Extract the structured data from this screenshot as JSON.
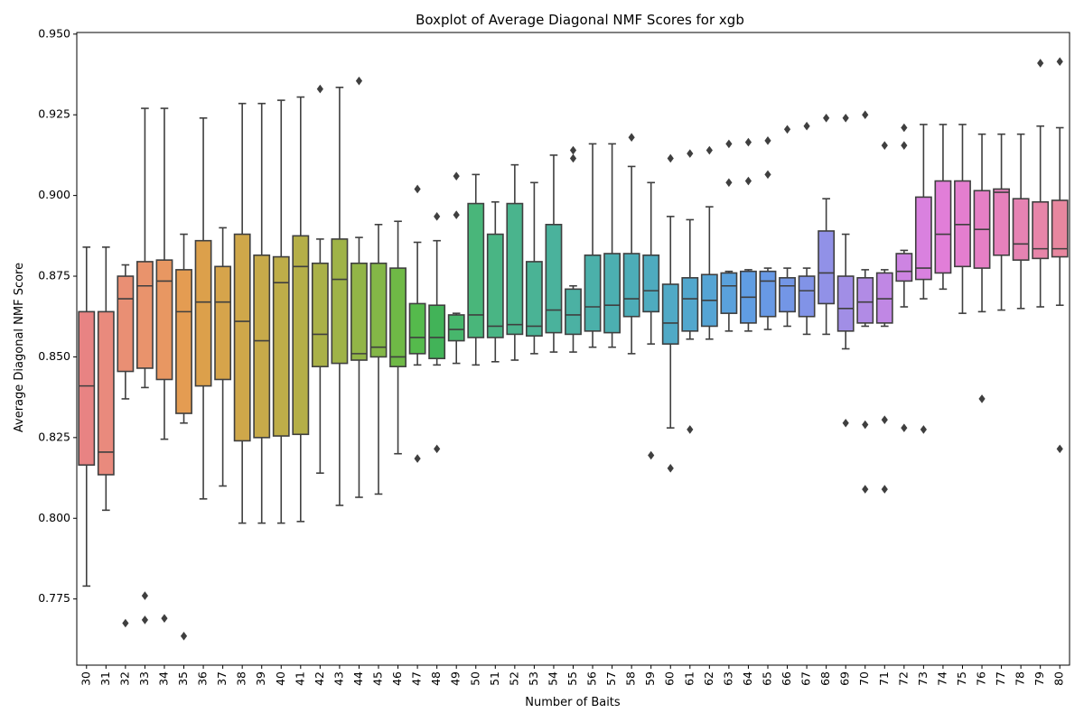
{
  "chart_data": {
    "type": "box",
    "title": "Boxplot of Average Diagonal NMF Scores for xgb",
    "xlabel": "Number of Baits",
    "ylabel": "Average Diagonal NMF Score",
    "ylim": [
      0.7545,
      0.9505
    ],
    "yticks": [
      0.775,
      0.8,
      0.825,
      0.85,
      0.875,
      0.9,
      0.925,
      0.95
    ],
    "ytick_labels": [
      "0.775",
      "0.800",
      "0.825",
      "0.850",
      "0.875",
      "0.900",
      "0.925",
      "0.950"
    ],
    "grid": false,
    "categories": [
      "30",
      "31",
      "32",
      "33",
      "34",
      "35",
      "36",
      "37",
      "38",
      "39",
      "40",
      "41",
      "42",
      "43",
      "44",
      "45",
      "46",
      "47",
      "48",
      "49",
      "50",
      "51",
      "52",
      "53",
      "54",
      "55",
      "56",
      "57",
      "58",
      "59",
      "60",
      "61",
      "62",
      "63",
      "64",
      "65",
      "66",
      "67",
      "68",
      "69",
      "70",
      "71",
      "72",
      "73",
      "74",
      "75",
      "76",
      "77",
      "78",
      "79",
      "80"
    ],
    "boxes": [
      {
        "whislo": 0.779,
        "q1": 0.8165,
        "med": 0.841,
        "q3": 0.864,
        "whishi": 0.884,
        "fliers": [],
        "color": "#e88383"
      },
      {
        "whislo": 0.8025,
        "q1": 0.8135,
        "med": 0.8205,
        "q3": 0.864,
        "whishi": 0.884,
        "fliers": [],
        "color": "#e98a7d"
      },
      {
        "whislo": 0.837,
        "q1": 0.8455,
        "med": 0.868,
        "q3": 0.875,
        "whishi": 0.8785,
        "fliers": [
          0.7675
        ],
        "color": "#e98f74"
      },
      {
        "whislo": 0.8405,
        "q1": 0.8465,
        "med": 0.872,
        "q3": 0.8795,
        "whishi": 0.927,
        "fliers": [
          0.7685,
          0.776
        ],
        "color": "#e9936c"
      },
      {
        "whislo": 0.8245,
        "q1": 0.843,
        "med": 0.8735,
        "q3": 0.88,
        "whishi": 0.927,
        "fliers": [
          0.769
        ],
        "color": "#e89762"
      },
      {
        "whislo": 0.8295,
        "q1": 0.8325,
        "med": 0.864,
        "q3": 0.877,
        "whishi": 0.888,
        "fliers": [
          0.7635
        ],
        "color": "#e49c52"
      },
      {
        "whislo": 0.806,
        "q1": 0.841,
        "med": 0.867,
        "q3": 0.886,
        "whishi": 0.924,
        "fliers": [],
        "color": "#dca04b"
      },
      {
        "whislo": 0.81,
        "q1": 0.843,
        "med": 0.867,
        "q3": 0.878,
        "whishi": 0.89,
        "fliers": [],
        "color": "#d6a44b"
      },
      {
        "whislo": 0.7985,
        "q1": 0.824,
        "med": 0.861,
        "q3": 0.888,
        "whishi": 0.9285,
        "fliers": [],
        "color": "#cfa74a"
      },
      {
        "whislo": 0.7985,
        "q1": 0.825,
        "med": 0.855,
        "q3": 0.8815,
        "whishi": 0.9285,
        "fliers": [],
        "color": "#c7aa4a"
      },
      {
        "whislo": 0.7985,
        "q1": 0.8255,
        "med": 0.873,
        "q3": 0.881,
        "whishi": 0.9295,
        "fliers": [],
        "color": "#bead49"
      },
      {
        "whislo": 0.799,
        "q1": 0.826,
        "med": 0.878,
        "q3": 0.8875,
        "whishi": 0.9305,
        "fliers": [],
        "color": "#b5af48"
      },
      {
        "whislo": 0.814,
        "q1": 0.847,
        "med": 0.857,
        "q3": 0.879,
        "whishi": 0.8865,
        "fliers": [
          0.933
        ],
        "color": "#aab148"
      },
      {
        "whislo": 0.804,
        "q1": 0.848,
        "med": 0.874,
        "q3": 0.8865,
        "whishi": 0.9335,
        "fliers": [],
        "color": "#9fb348"
      },
      {
        "whislo": 0.8065,
        "q1": 0.849,
        "med": 0.851,
        "q3": 0.879,
        "whishi": 0.887,
        "fliers": [
          0.9355
        ],
        "color": "#92b547"
      },
      {
        "whislo": 0.8075,
        "q1": 0.85,
        "med": 0.853,
        "q3": 0.879,
        "whishi": 0.891,
        "fliers": [],
        "color": "#84b747"
      },
      {
        "whislo": 0.82,
        "q1": 0.847,
        "med": 0.85,
        "q3": 0.8775,
        "whishi": 0.892,
        "fliers": [],
        "color": "#6fb946"
      },
      {
        "whislo": 0.8475,
        "q1": 0.851,
        "med": 0.856,
        "q3": 0.8665,
        "whishi": 0.8855,
        "fliers": [
          0.8185,
          0.902
        ],
        "color": "#55ba4c"
      },
      {
        "whislo": 0.8475,
        "q1": 0.8495,
        "med": 0.856,
        "q3": 0.866,
        "whishi": 0.886,
        "fliers": [
          0.8215,
          0.8935
        ],
        "color": "#42b358"
      },
      {
        "whislo": 0.848,
        "q1": 0.855,
        "med": 0.8585,
        "q3": 0.863,
        "whishi": 0.8635,
        "fliers": [
          0.894,
          0.906
        ],
        "color": "#47b76c"
      },
      {
        "whislo": 0.8475,
        "q1": 0.856,
        "med": 0.863,
        "q3": 0.8975,
        "whishi": 0.9065,
        "fliers": [],
        "color": "#49b67a"
      },
      {
        "whislo": 0.8485,
        "q1": 0.856,
        "med": 0.8595,
        "q3": 0.888,
        "whishi": 0.898,
        "fliers": [],
        "color": "#49b584"
      },
      {
        "whislo": 0.849,
        "q1": 0.857,
        "med": 0.86,
        "q3": 0.8975,
        "whishi": 0.9095,
        "fliers": [],
        "color": "#4ab48d"
      },
      {
        "whislo": 0.851,
        "q1": 0.8565,
        "med": 0.8595,
        "q3": 0.8795,
        "whishi": 0.904,
        "fliers": [],
        "color": "#4ab395"
      },
      {
        "whislo": 0.8515,
        "q1": 0.8575,
        "med": 0.8645,
        "q3": 0.891,
        "whishi": 0.9125,
        "fliers": [],
        "color": "#4ab29c"
      },
      {
        "whislo": 0.8515,
        "q1": 0.857,
        "med": 0.863,
        "q3": 0.871,
        "whishi": 0.872,
        "fliers": [
          0.9115,
          0.914
        ],
        "color": "#4bb1a3"
      },
      {
        "whislo": 0.853,
        "q1": 0.858,
        "med": 0.8655,
        "q3": 0.8815,
        "whishi": 0.916,
        "fliers": [],
        "color": "#4bb0aa"
      },
      {
        "whislo": 0.853,
        "q1": 0.8575,
        "med": 0.866,
        "q3": 0.882,
        "whishi": 0.916,
        "fliers": [],
        "color": "#4cafb1"
      },
      {
        "whislo": 0.851,
        "q1": 0.8625,
        "med": 0.868,
        "q3": 0.882,
        "whishi": 0.909,
        "fliers": [
          0.918
        ],
        "color": "#4dadb8"
      },
      {
        "whislo": 0.854,
        "q1": 0.864,
        "med": 0.8705,
        "q3": 0.8815,
        "whishi": 0.904,
        "fliers": [
          0.8195
        ],
        "color": "#4eabbf"
      },
      {
        "whislo": 0.828,
        "q1": 0.854,
        "med": 0.8605,
        "q3": 0.8725,
        "whishi": 0.8935,
        "fliers": [
          0.8155,
          0.9115
        ],
        "color": "#50a9c6"
      },
      {
        "whislo": 0.8555,
        "q1": 0.858,
        "med": 0.868,
        "q3": 0.8745,
        "whishi": 0.8925,
        "fliers": [
          0.8275,
          0.913
        ],
        "color": "#52a7cd"
      },
      {
        "whislo": 0.8555,
        "q1": 0.8595,
        "med": 0.8675,
        "q3": 0.8755,
        "whishi": 0.8965,
        "fliers": [
          0.914
        ],
        "color": "#55a4d4"
      },
      {
        "whislo": 0.858,
        "q1": 0.8635,
        "med": 0.872,
        "q3": 0.876,
        "whishi": 0.8765,
        "fliers": [
          0.904,
          0.916
        ],
        "color": "#5aa1dc"
      },
      {
        "whislo": 0.858,
        "q1": 0.8605,
        "med": 0.8685,
        "q3": 0.8765,
        "whishi": 0.877,
        "fliers": [
          0.9045,
          0.9165
        ],
        "color": "#609de2"
      },
      {
        "whislo": 0.8585,
        "q1": 0.8625,
        "med": 0.8735,
        "q3": 0.8765,
        "whishi": 0.8775,
        "fliers": [
          0.9065,
          0.917
        ],
        "color": "#6899e5"
      },
      {
        "whislo": 0.8595,
        "q1": 0.864,
        "med": 0.872,
        "q3": 0.8745,
        "whishi": 0.8775,
        "fliers": [
          0.9205
        ],
        "color": "#7396e6"
      },
      {
        "whislo": 0.857,
        "q1": 0.8625,
        "med": 0.8705,
        "q3": 0.875,
        "whishi": 0.8775,
        "fliers": [
          0.9215
        ],
        "color": "#8193e7"
      },
      {
        "whislo": 0.857,
        "q1": 0.8665,
        "med": 0.876,
        "q3": 0.889,
        "whishi": 0.899,
        "fliers": [
          0.924
        ],
        "color": "#9191e7"
      },
      {
        "whislo": 0.8525,
        "q1": 0.858,
        "med": 0.865,
        "q3": 0.875,
        "whishi": 0.888,
        "fliers": [
          0.8295,
          0.924
        ],
        "color": "#a18ee6"
      },
      {
        "whislo": 0.8595,
        "q1": 0.8605,
        "med": 0.867,
        "q3": 0.8745,
        "whishi": 0.877,
        "fliers": [
          0.809,
          0.829,
          0.925
        ],
        "color": "#b18be5"
      },
      {
        "whislo": 0.8595,
        "q1": 0.8605,
        "med": 0.868,
        "q3": 0.876,
        "whishi": 0.877,
        "fliers": [
          0.809,
          0.8305,
          0.9155
        ],
        "color": "#c087e4"
      },
      {
        "whislo": 0.8655,
        "q1": 0.8735,
        "med": 0.8765,
        "q3": 0.882,
        "whishi": 0.883,
        "fliers": [
          0.828,
          0.9155,
          0.921
        ],
        "color": "#cd84e2"
      },
      {
        "whislo": 0.868,
        "q1": 0.874,
        "med": 0.8775,
        "q3": 0.8995,
        "whishi": 0.922,
        "fliers": [
          0.8275
        ],
        "color": "#d981df"
      },
      {
        "whislo": 0.871,
        "q1": 0.876,
        "med": 0.888,
        "q3": 0.9045,
        "whishi": 0.922,
        "fliers": [],
        "color": "#e17ed8"
      },
      {
        "whislo": 0.8635,
        "q1": 0.878,
        "med": 0.891,
        "q3": 0.9045,
        "whishi": 0.922,
        "fliers": [],
        "color": "#e47ecf"
      },
      {
        "whislo": 0.864,
        "q1": 0.8775,
        "med": 0.8895,
        "q3": 0.9015,
        "whishi": 0.919,
        "fliers": [
          0.837
        ],
        "color": "#e57fc5"
      },
      {
        "whislo": 0.8645,
        "q1": 0.8815,
        "med": 0.901,
        "q3": 0.902,
        "whishi": 0.919,
        "fliers": [],
        "color": "#e681bc"
      },
      {
        "whislo": 0.865,
        "q1": 0.88,
        "med": 0.885,
        "q3": 0.899,
        "whishi": 0.919,
        "fliers": [],
        "color": "#e683b3"
      },
      {
        "whislo": 0.8655,
        "q1": 0.8805,
        "med": 0.8835,
        "q3": 0.898,
        "whishi": 0.9215,
        "fliers": [
          0.941
        ],
        "color": "#e785a9"
      },
      {
        "whislo": 0.866,
        "q1": 0.881,
        "med": 0.8835,
        "q3": 0.8985,
        "whishi": 0.921,
        "fliers": [
          0.8215,
          0.9415
        ],
        "color": "#e7879f"
      }
    ]
  }
}
